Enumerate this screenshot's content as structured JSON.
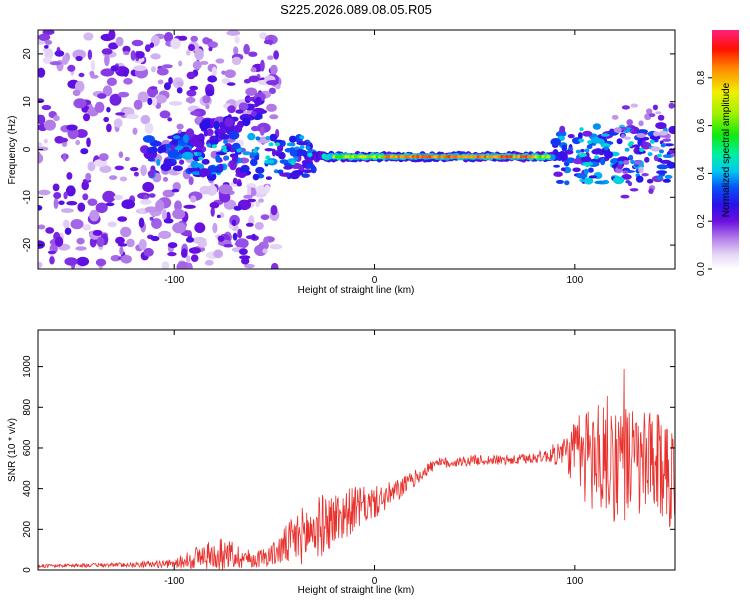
{
  "title": "S225.2026.089.08.05.R05",
  "chart_data": [
    {
      "type": "heatmap",
      "name": "spectrogram",
      "xlabel": "Height of straight line (km)",
      "ylabel": "Frequency (Hz)",
      "xlim": [
        -168,
        150
      ],
      "ylim": [
        -25,
        25
      ],
      "xticks": [
        -100,
        0,
        100
      ],
      "yticks": [
        -20,
        -10,
        0,
        10,
        20
      ],
      "colorbar": {
        "label": "Normalized spectral amplitude",
        "range": [
          0.0,
          1.0
        ],
        "ticks": [
          "0.0",
          "0.2",
          "0.4",
          "0.6",
          "0.8"
        ]
      },
      "ridge_frequency_hz": -1.5,
      "ridge_extent_km": [
        -30,
        95
      ],
      "ridge_peak_amplitude": 0.9
    },
    {
      "type": "line",
      "name": "snr",
      "xlabel": "Height of straight line (km)",
      "ylabel": "SNR (10 * v/v)",
      "xlim": [
        -168,
        150
      ],
      "ylim": [
        0,
        1180
      ],
      "xticks": [
        -100,
        0,
        100
      ],
      "yticks": [
        0,
        200,
        400,
        600,
        800,
        1000
      ],
      "color": "#e8302c",
      "envelope_x": [
        -168,
        -130,
        -100,
        -90,
        -75,
        -60,
        -50,
        -40,
        -30,
        -20,
        -10,
        0,
        10,
        20,
        30,
        50,
        70,
        85,
        95,
        105,
        115,
        130,
        150
      ],
      "envelope_mean": [
        20,
        25,
        30,
        60,
        80,
        50,
        80,
        150,
        200,
        250,
        300,
        330,
        380,
        450,
        520,
        540,
        540,
        560,
        580,
        560,
        550,
        520,
        480
      ],
      "envelope_spread": [
        8,
        10,
        20,
        60,
        80,
        40,
        60,
        130,
        160,
        140,
        110,
        80,
        60,
        40,
        30,
        25,
        25,
        30,
        80,
        260,
        320,
        280,
        260
      ]
    }
  ]
}
